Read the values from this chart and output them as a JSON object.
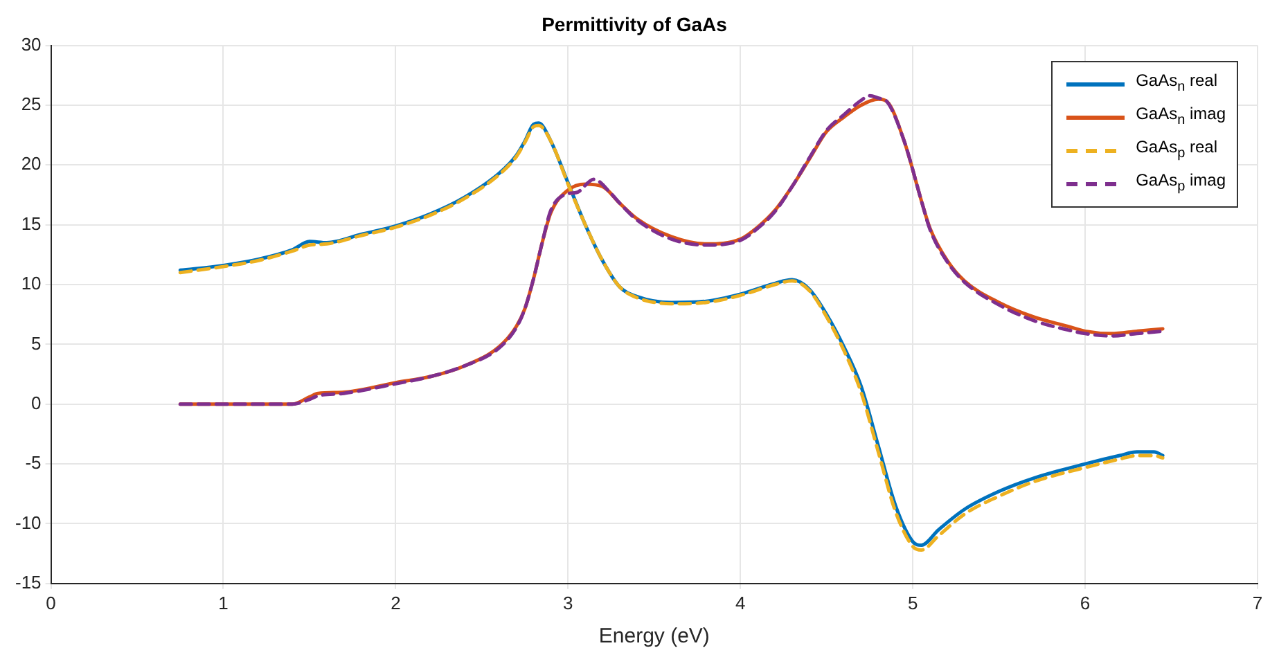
{
  "chart_data": {
    "type": "line",
    "title": "Permittivity of GaAs",
    "xlabel": "Energy (eV)",
    "xlim": [
      0,
      7
    ],
    "xticks": [
      0,
      1,
      2,
      3,
      4,
      5,
      6,
      7
    ],
    "ylim": [
      -15,
      30
    ],
    "yticks": [
      -15,
      -10,
      -5,
      0,
      5,
      10,
      15,
      20,
      25,
      30
    ],
    "grid": true,
    "legend": "top right",
    "marker": "none",
    "series": [
      {
        "name": "GaAs$_{n}$ real",
        "color": "#0072bd",
        "line_style": "solid",
        "x": [
          0.75,
          1.0,
          1.2,
          1.4,
          1.5,
          1.6,
          1.8,
          2.0,
          2.2,
          2.4,
          2.6,
          2.7,
          2.75,
          2.8,
          2.83,
          2.9,
          3.0,
          3.1,
          3.2,
          3.3,
          3.4,
          3.6,
          3.8,
          4.0,
          4.2,
          4.3,
          4.4,
          4.5,
          4.6,
          4.7,
          4.8,
          4.9,
          5.0,
          5.05,
          5.15,
          5.3,
          5.5,
          5.7,
          6.0,
          6.2,
          6.3,
          6.4,
          6.45
        ],
        "values": [
          11.2,
          11.6,
          12.1,
          12.9,
          13.6,
          13.5,
          14.2,
          14.9,
          15.9,
          17.3,
          19.3,
          20.8,
          22.0,
          23.4,
          23.5,
          22.0,
          18.5,
          15.0,
          12.0,
          9.8,
          9.0,
          8.5,
          8.6,
          9.2,
          10.1,
          10.4,
          9.6,
          7.5,
          4.8,
          1.5,
          -3.5,
          -8.5,
          -11.5,
          -11.8,
          -10.5,
          -8.8,
          -7.3,
          -6.2,
          -5.0,
          -4.3,
          -4.0,
          -4.0,
          -4.3
        ]
      },
      {
        "name": "GaAs$_{n}$ imag",
        "color": "#d95319",
        "line_style": "solid",
        "x": [
          0.75,
          1.4,
          1.5,
          1.55,
          1.7,
          2.0,
          2.2,
          2.4,
          2.6,
          2.7,
          2.75,
          2.8,
          2.85,
          2.9,
          3.0,
          3.1,
          3.2,
          3.3,
          3.4,
          3.6,
          3.8,
          4.0,
          4.1,
          4.2,
          4.3,
          4.4,
          4.5,
          4.6,
          4.7,
          4.8,
          4.85,
          4.95,
          5.05,
          5.1,
          5.2,
          5.3,
          5.5,
          5.7,
          5.9,
          6.0,
          6.15,
          6.3,
          6.45
        ],
        "values": [
          0,
          0,
          0.6,
          0.9,
          1.0,
          1.8,
          2.3,
          3.2,
          4.8,
          6.5,
          8.0,
          10.5,
          13.5,
          16.0,
          17.9,
          18.4,
          18.2,
          16.8,
          15.5,
          14.0,
          13.4,
          13.8,
          14.8,
          16.2,
          18.2,
          20.5,
          22.8,
          24.0,
          25.0,
          25.5,
          25.3,
          22.0,
          17.0,
          14.7,
          12.0,
          10.3,
          8.5,
          7.3,
          6.5,
          6.1,
          5.9,
          6.1,
          6.3
        ]
      },
      {
        "name": "GaAs$_{p}$ real",
        "color": "#edb120",
        "line_style": "dashed",
        "x": [
          0.75,
          1.0,
          1.2,
          1.4,
          1.5,
          1.6,
          1.8,
          2.0,
          2.2,
          2.4,
          2.6,
          2.7,
          2.75,
          2.8,
          2.83,
          2.9,
          3.0,
          3.1,
          3.2,
          3.3,
          3.4,
          3.6,
          3.8,
          4.0,
          4.2,
          4.3,
          4.4,
          4.5,
          4.6,
          4.7,
          4.8,
          4.9,
          5.0,
          5.05,
          5.15,
          5.3,
          5.5,
          5.7,
          6.0,
          6.2,
          6.3,
          6.4,
          6.45
        ],
        "values": [
          11.0,
          11.5,
          12.0,
          12.8,
          13.3,
          13.4,
          14.1,
          14.8,
          15.8,
          17.2,
          19.2,
          20.7,
          21.9,
          23.2,
          23.3,
          22.0,
          18.4,
          15.0,
          12.0,
          9.8,
          8.9,
          8.4,
          8.5,
          9.1,
          10.0,
          10.3,
          9.5,
          7.3,
          4.5,
          1.0,
          -4.0,
          -9.0,
          -11.9,
          -12.2,
          -11.0,
          -9.2,
          -7.7,
          -6.5,
          -5.3,
          -4.6,
          -4.3,
          -4.3,
          -4.5
        ]
      },
      {
        "name": "GaAs$_{p}$ imag",
        "color": "#7e2f8e",
        "line_style": "dashed",
        "x": [
          0.75,
          1.4,
          1.5,
          1.55,
          1.7,
          2.0,
          2.2,
          2.4,
          2.6,
          2.7,
          2.75,
          2.8,
          2.85,
          2.9,
          3.0,
          3.05,
          3.15,
          3.25,
          3.3,
          3.4,
          3.6,
          3.8,
          4.0,
          4.1,
          4.2,
          4.3,
          4.4,
          4.5,
          4.6,
          4.7,
          4.75,
          4.8,
          4.85,
          4.95,
          5.05,
          5.1,
          5.2,
          5.3,
          5.5,
          5.7,
          5.9,
          6.0,
          6.15,
          6.3,
          6.45
        ],
        "values": [
          0,
          0,
          0.4,
          0.7,
          0.9,
          1.7,
          2.3,
          3.2,
          4.7,
          6.4,
          8.0,
          10.5,
          13.5,
          16.2,
          17.6,
          17.7,
          18.8,
          17.6,
          16.8,
          15.4,
          13.8,
          13.3,
          13.7,
          14.7,
          16.1,
          18.2,
          20.6,
          22.9,
          24.2,
          25.4,
          25.8,
          25.6,
          25.3,
          22.0,
          17.0,
          14.6,
          11.9,
          10.2,
          8.3,
          7.0,
          6.2,
          5.9,
          5.7,
          5.9,
          6.1
        ]
      }
    ]
  }
}
